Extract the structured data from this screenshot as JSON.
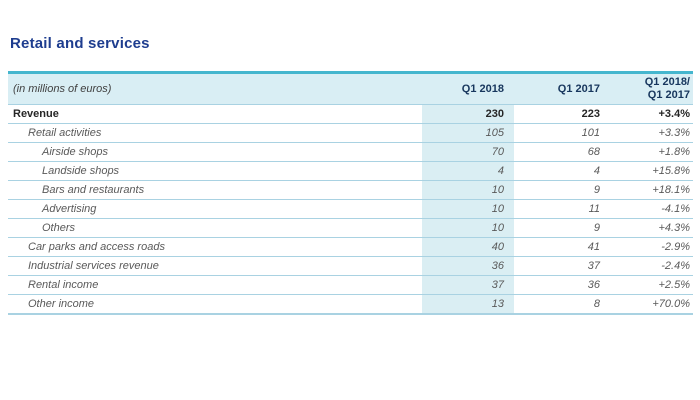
{
  "page": {
    "title": "Retail and services"
  },
  "table": {
    "unit_label": "(in millions of euros)",
    "columns": [
      "Q1 2018",
      "Q1 2017",
      "Q1 2018/\nQ1 2017"
    ],
    "rows": [
      {
        "label": "Revenue",
        "q1_2018": "230",
        "q1_2017": "223",
        "change": "+3.4%"
      },
      {
        "label": "Retail activities",
        "q1_2018": "105",
        "q1_2017": "101",
        "change": "+3.3%"
      },
      {
        "label": "Airside shops",
        "q1_2018": "70",
        "q1_2017": "68",
        "change": "+1.8%"
      },
      {
        "label": "Landside shops",
        "q1_2018": "4",
        "q1_2017": "4",
        "change": "+15.8%"
      },
      {
        "label": "Bars and restaurants",
        "q1_2018": "10",
        "q1_2017": "9",
        "change": "+18.1%"
      },
      {
        "label": "Advertising",
        "q1_2018": "10",
        "q1_2017": "11",
        "change": "-4.1%"
      },
      {
        "label": "Others",
        "q1_2018": "10",
        "q1_2017": "9",
        "change": "+4.3%"
      },
      {
        "label": "Car parks and access roads",
        "q1_2018": "40",
        "q1_2017": "41",
        "change": "-2.9%"
      },
      {
        "label": "Industrial services revenue",
        "q1_2018": "36",
        "q1_2017": "37",
        "change": "-2.4%"
      },
      {
        "label": "Rental income",
        "q1_2018": "37",
        "q1_2017": "36",
        "change": "+2.5%"
      },
      {
        "label": "Other income",
        "q1_2018": "13",
        "q1_2017": "8",
        "change": "+70.0%"
      }
    ],
    "colors": {
      "accent_teal": "#45b6ce",
      "header_bg": "#d9eef4",
      "column_band_bg": "#daeef3",
      "row_border": "#a9d2e2",
      "title_navy": "#1e3d8f",
      "header_text_navy": "#17365d",
      "body_text": "#595959",
      "total_text": "#262626"
    }
  }
}
